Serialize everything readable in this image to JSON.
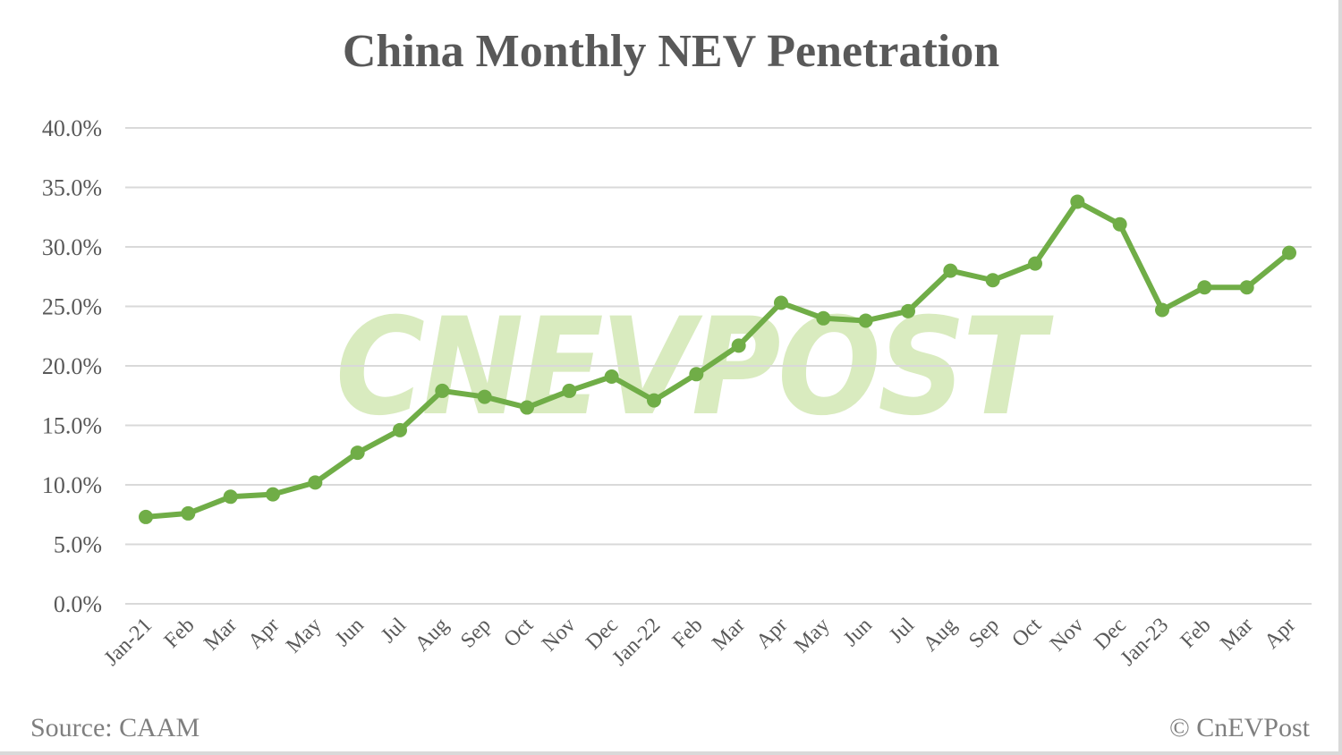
{
  "chart": {
    "title": "China Monthly NEV Penetration",
    "source": "Source: CAAM",
    "credit": "© CnEVPost",
    "watermark": "CNEVPOST",
    "colors": {
      "line": "#70ad47",
      "grid": "#d9d9d9",
      "text": "#595959",
      "watermark": "#d9ebbf"
    }
  },
  "chart_data": {
    "type": "line",
    "title": "China Monthly NEV Penetration",
    "xlabel": "",
    "ylabel": "",
    "ylim": [
      0,
      40
    ],
    "yticks": [
      "0.0%",
      "5.0%",
      "10.0%",
      "15.0%",
      "20.0%",
      "25.0%",
      "30.0%",
      "35.0%",
      "40.0%"
    ],
    "grid": true,
    "legend": "none",
    "categories": [
      "Jan-21",
      "Feb",
      "Mar",
      "Apr",
      "May",
      "Jun",
      "Jul",
      "Aug",
      "Sep",
      "Oct",
      "Nov",
      "Dec",
      "Jan-22",
      "Feb",
      "Mar",
      "Apr",
      "May",
      "Jun",
      "Jul",
      "Aug",
      "Sep",
      "Oct",
      "Nov",
      "Dec",
      "Jan-23",
      "Feb",
      "Mar",
      "Apr"
    ],
    "series": [
      {
        "name": "NEV Penetration",
        "values": [
          7.3,
          7.6,
          9.0,
          9.2,
          10.2,
          12.7,
          14.6,
          17.9,
          17.4,
          16.5,
          17.9,
          19.1,
          17.1,
          19.3,
          21.7,
          25.3,
          24.0,
          23.8,
          24.6,
          28.0,
          27.2,
          28.6,
          33.8,
          31.9,
          24.7,
          26.6,
          26.6,
          29.5
        ]
      }
    ],
    "source": "Source: CAAM",
    "annotations": [
      "© CnEVPost"
    ]
  }
}
